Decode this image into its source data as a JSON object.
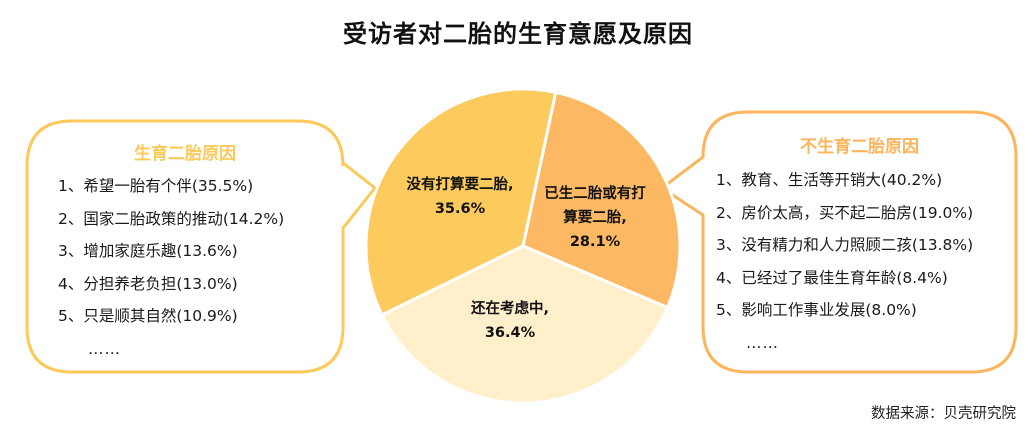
{
  "title": "受访者对二胎的生育意愿及原因",
  "colors": {
    "slice_plan_no": "#FDCA5D",
    "slice_have_or_plan": "#FCB863",
    "slice_considering": "#FFEFCB",
    "left_bubble_border": "#FCC95A",
    "right_bubble_border": "#FBB55C",
    "left_bubble_title": "#FCC95A",
    "right_bubble_title": "#FBB55C"
  },
  "left_bubble": {
    "title": "生育二胎原因",
    "items": [
      "1、希望一胎有个伴(35.5%)",
      "2、国家二胎政策的推动(14.2%)",
      "3、增加家庭乐趣(13.6%)",
      "4、分担养老负担(13.0%)",
      "5、只是顺其自然(10.9%)",
      "……"
    ]
  },
  "right_bubble": {
    "title": "不生育二胎原因",
    "items": [
      "1、教育、生活等开销大(40.2%)",
      "2、房价太高，买不起二胎房(19.0%)",
      "3、没有精力和人力照顾二孩(13.8%)",
      "4、已经过了最佳生育年龄(8.4%)",
      "5、影响工作事业发展(8.0%)",
      "……"
    ]
  },
  "pie_labels": {
    "plan_no": {
      "line1": "没有打算要二胎,",
      "line2": "35.6%"
    },
    "have_or_plan": {
      "line1": "已生二胎或有打",
      "line2": "算要二胎,",
      "line3": "28.1%"
    },
    "considering": {
      "line1": "还在考虑中,",
      "line2": "36.4%"
    }
  },
  "source": "数据来源：贝壳研究院",
  "chart_data": {
    "type": "pie",
    "title": "受访者对二胎的生育意愿及原因",
    "categories": [
      "已生二胎或有打算要二胎",
      "还在考虑中",
      "没有打算要二胎"
    ],
    "values": [
      28.1,
      36.4,
      35.6
    ],
    "unit": "%",
    "legend": "none (inline labels)",
    "annotations": {
      "生育二胎原因": [
        {
          "label": "希望一胎有个伴",
          "value": 35.5
        },
        {
          "label": "国家二胎政策的推动",
          "value": 14.2
        },
        {
          "label": "增加家庭乐趣",
          "value": 13.6
        },
        {
          "label": "分担养老负担",
          "value": 13.0
        },
        {
          "label": "只是顺其自然",
          "value": 10.9
        }
      ],
      "不生育二胎原因": [
        {
          "label": "教育、生活等开销大",
          "value": 40.2
        },
        {
          "label": "房价太高，买不起二胎房",
          "value": 19.0
        },
        {
          "label": "没有精力和人力照顾二孩",
          "value": 13.8
        },
        {
          "label": "已经过了最佳生育年龄",
          "value": 8.4
        },
        {
          "label": "影响工作事业发展",
          "value": 8.0
        }
      ]
    },
    "source": "数据来源：贝壳研究院"
  }
}
